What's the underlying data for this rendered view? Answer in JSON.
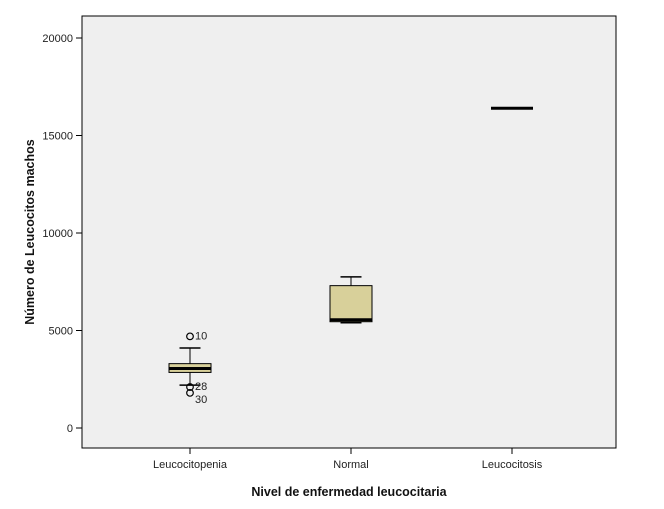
{
  "chart_data": {
    "type": "boxplot",
    "xlabel": "Nivel de enfermedad leucocitaria",
    "ylabel": "Número de Leucocitos machos",
    "ylim": [
      -1000,
      21000
    ],
    "yticks": [
      0,
      5000,
      10000,
      15000,
      20000
    ],
    "grid": false,
    "categories": [
      "Leucocitopenia",
      "Normal",
      "Leucocitosis"
    ],
    "boxes": [
      {
        "category": "Leucocitopenia",
        "whisker_low": 2200,
        "q1": 2850,
        "median": 3050,
        "q3": 3300,
        "whisker_high": 4100,
        "outliers": [
          {
            "value": 4700,
            "label": "10"
          },
          {
            "value": 2100,
            "label": "28"
          },
          {
            "value": 1800,
            "label": "30"
          }
        ]
      },
      {
        "category": "Normal",
        "whisker_low": 5400,
        "q1": 5450,
        "median": 5550,
        "q3": 7300,
        "whisker_high": 7750,
        "outliers": []
      },
      {
        "category": "Leucocitosis",
        "whisker_low": 16400,
        "q1": 16400,
        "median": 16400,
        "q3": 16400,
        "whisker_high": 16400,
        "outliers": []
      }
    ],
    "colors": {
      "box_fill": "#d8d09a",
      "plot_background": "#efefef",
      "stroke": "#000000"
    }
  }
}
